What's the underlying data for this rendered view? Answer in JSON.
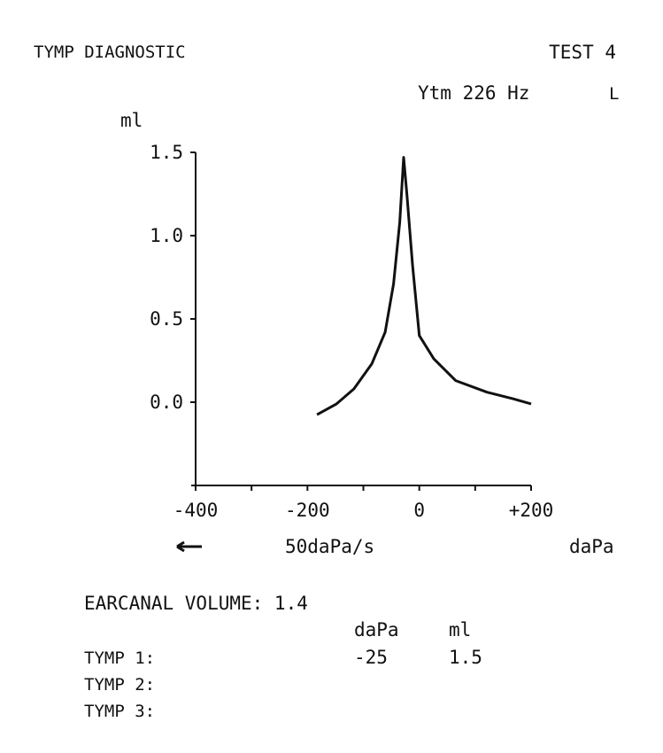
{
  "header": {
    "title": "TYMP DIAGNOSTIC",
    "test": "TEST 4",
    "probe": "Ytm 226 Hz",
    "ear": "L"
  },
  "chart_data": {
    "type": "line",
    "ylabel": "ml",
    "xlabel": "daPa",
    "rate": "50daPa/s",
    "x": [
      -183,
      -148,
      -117,
      -85,
      -61,
      -46,
      -35,
      -28,
      -22,
      -12,
      0,
      26,
      65,
      121,
      168,
      200
    ],
    "values": [
      -0.075,
      -0.01,
      0.08,
      0.23,
      0.42,
      0.71,
      1.08,
      1.47,
      1.24,
      0.82,
      0.4,
      0.26,
      0.13,
      0.06,
      0.02,
      -0.01
    ],
    "color": "#111111",
    "xlim": [
      -400,
      200
    ],
    "xticks": [
      -400,
      -200,
      0,
      {
        "value": 200,
        "label": "+200"
      }
    ],
    "x_minor_ticks": [
      -300,
      -100,
      100
    ],
    "ylim": [
      -0.5,
      1.5
    ],
    "yticks": [
      {
        "value": 0,
        "label": "0.0"
      },
      0.5,
      {
        "value": 1,
        "label": "1.0"
      },
      1.5
    ]
  },
  "report": {
    "earcanal": "EARCANAL VOLUME: 1.4",
    "columns": [
      "daPa",
      "ml"
    ],
    "rows": [
      [
        "TYMP 1:",
        "-25",
        "1.5"
      ],
      [
        "TYMP 2:"
      ],
      [
        "TYMP 3:"
      ]
    ]
  }
}
